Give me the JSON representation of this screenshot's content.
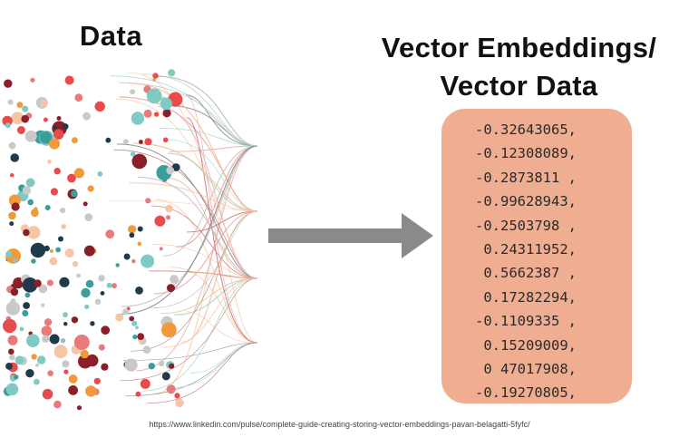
{
  "left": {
    "title": "Data"
  },
  "right": {
    "title_line1": "Vector Embeddings/",
    "title_line2": "Vector Data",
    "box_color": "#efae92",
    "values": [
      "-0.32643065,",
      "-0.12308089,",
      "-0.2873811 ,",
      "-0.99628943,",
      "-0.2503798 ,",
      " 0.24311952,",
      " 0.5662387 ,",
      " 0.17282294,",
      "-0.1109335 ,",
      " 0.15209009,",
      " 0 47017908,",
      "-0.19270805,"
    ]
  },
  "arrow": {
    "icon": "right-arrow-icon",
    "color": "#8a8a8a"
  },
  "data_graphic": {
    "icon": "scattered-dots-with-flow-lines",
    "palette": [
      "#e84b4b",
      "#3a9e9a",
      "#1f3a4a",
      "#f29a3a",
      "#f5c6a6",
      "#e87a7a",
      "#7fcac4",
      "#8a1f2a",
      "#c9c9c9"
    ]
  },
  "source": {
    "caption": "https://www.linkedin.com/pulse/complete-guide-creating-storing-vector-embeddings-pavan-belagatti-5fyfc/"
  }
}
